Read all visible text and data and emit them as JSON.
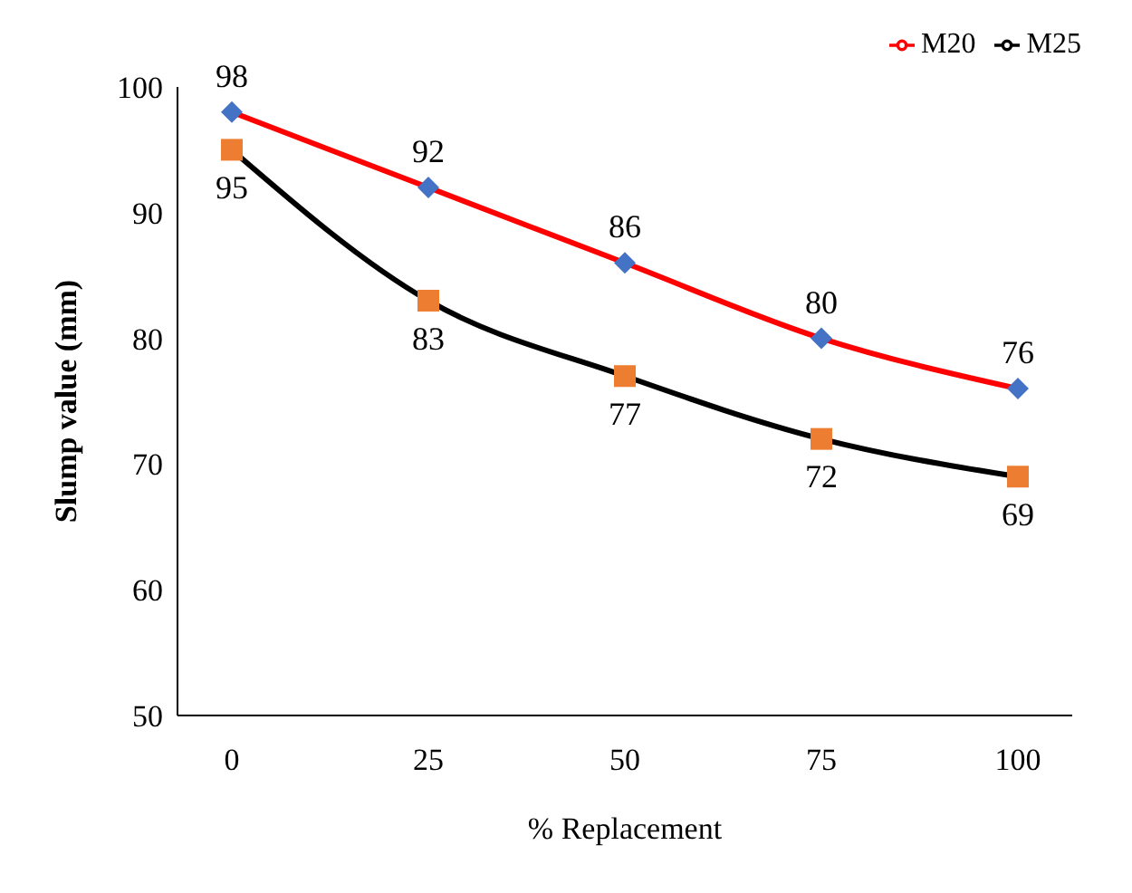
{
  "chart_data": {
    "type": "line",
    "xlabel": "% Replacement",
    "ylabel": "Slump value (mm)",
    "categories": [
      "0",
      "25",
      "50",
      "75",
      "100"
    ],
    "series": [
      {
        "name": "M20",
        "color": "#ff0000",
        "colors": [
          "#4472c4",
          "#4472c4",
          "#4472c4",
          "#4472c4",
          "#4472c4"
        ],
        "marker": "diamond",
        "values": [
          98,
          92,
          86,
          80,
          76
        ]
      },
      {
        "name": "M25",
        "color": "#000000",
        "colors": [
          "#ed7d31",
          "#ed7d31",
          "#ed7d31",
          "#ed7d31",
          "#ed7d31"
        ],
        "marker": "square",
        "values": [
          95,
          83,
          77,
          72,
          69
        ]
      }
    ],
    "ylim": [
      50,
      100
    ],
    "yticks": [
      50,
      60,
      70,
      80,
      90,
      100
    ],
    "grid": false,
    "legend": "top right",
    "data_labels": true
  }
}
